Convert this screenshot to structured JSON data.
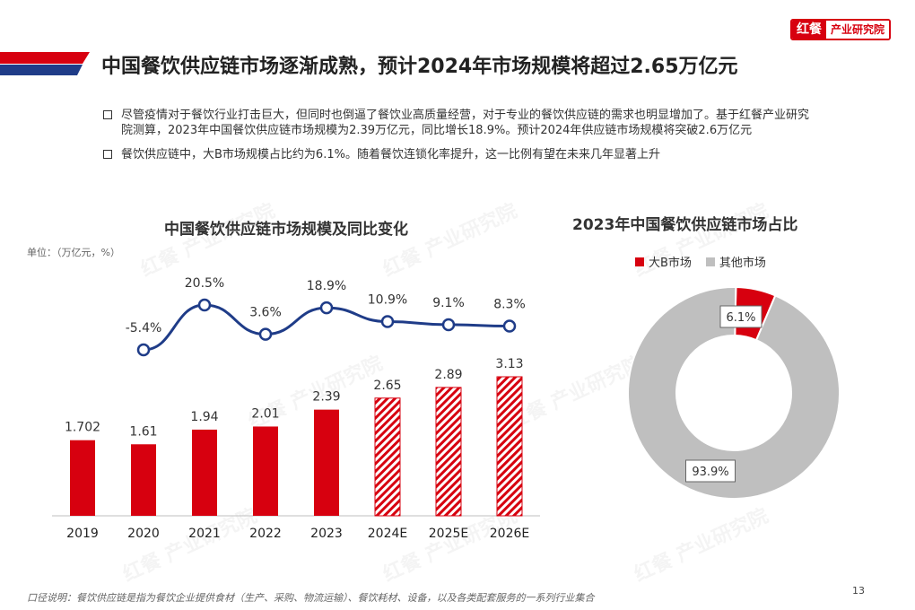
{
  "logo": {
    "mark": "红餐",
    "text": "产业研究院"
  },
  "title": "中国餐饮供应链市场逐渐成熟，预计2024年市场规模将超过2.65万亿元",
  "bullets": [
    "尽管疫情对于餐饮行业打击巨大，但同时也倒逼了餐饮业高质量经营，对于专业的餐饮供应链的需求也明显增加了。基于红餐产业研究院测算，2023年中国餐饮供应链市场规模为2.39万亿元，同比增长18.9%。预计2024年供应链市场规模将突破2.6万亿元",
    "餐饮供应链中，大B市场规模占比约为6.1%。随着餐饮连锁化率提升，这一比例有望在未来几年显著上升"
  ],
  "watermark_text": "红餐 产业研究院",
  "footnote": "口径说明：餐饮供应链是指为餐饮企业提供食材（生产、采购、物流运输）、餐饮耗材、设备，以及各类配套服务的一系列行业集合",
  "page_number": "13",
  "colors": {
    "brand_red": "#d7000f",
    "line_blue": "#1f3c88",
    "gray": "#bfbfbf",
    "accent_blue": "#1f3c88"
  },
  "chart_data": [
    {
      "type": "bar",
      "title": "中国餐饮供应链市场规模及同比变化",
      "unit_label": "单位：（万亿元，%）",
      "categories": [
        "2019",
        "2020",
        "2021",
        "2022",
        "2023",
        "2024E",
        "2025E",
        "2026E"
      ],
      "series": [
        {
          "name": "",
          "type": "bar",
          "values": [
            1.702,
            1.61,
            1.94,
            2.01,
            2.39,
            2.65,
            2.89,
            3.13
          ],
          "labels": [
            "1.702",
            "1.61",
            "1.94",
            "2.01",
            "2.39",
            "2.65",
            "2.89",
            "3.13"
          ],
          "forecast": [
            false,
            false,
            false,
            false,
            false,
            true,
            true,
            true
          ]
        },
        {
          "name": "",
          "type": "line",
          "values": [
            null,
            -5.4,
            20.5,
            3.6,
            18.9,
            10.9,
            9.1,
            8.3
          ],
          "labels": [
            "",
            "-5.4%",
            "20.5%",
            "3.6%",
            "18.9%",
            "10.9%",
            "9.1%",
            "8.3%"
          ]
        }
      ],
      "ylim": [
        0,
        3.5
      ],
      "grid": false
    },
    {
      "type": "pie",
      "title": "2023年中国餐饮供应链市场占比",
      "donut": true,
      "legend_position": "top",
      "slices": [
        {
          "name": "大B市场",
          "value": 6.1,
          "label": "6.1%",
          "color": "#d7000f"
        },
        {
          "name": "其他市场",
          "value": 93.9,
          "label": "93.9%",
          "color": "#bfbfbf"
        }
      ]
    }
  ]
}
